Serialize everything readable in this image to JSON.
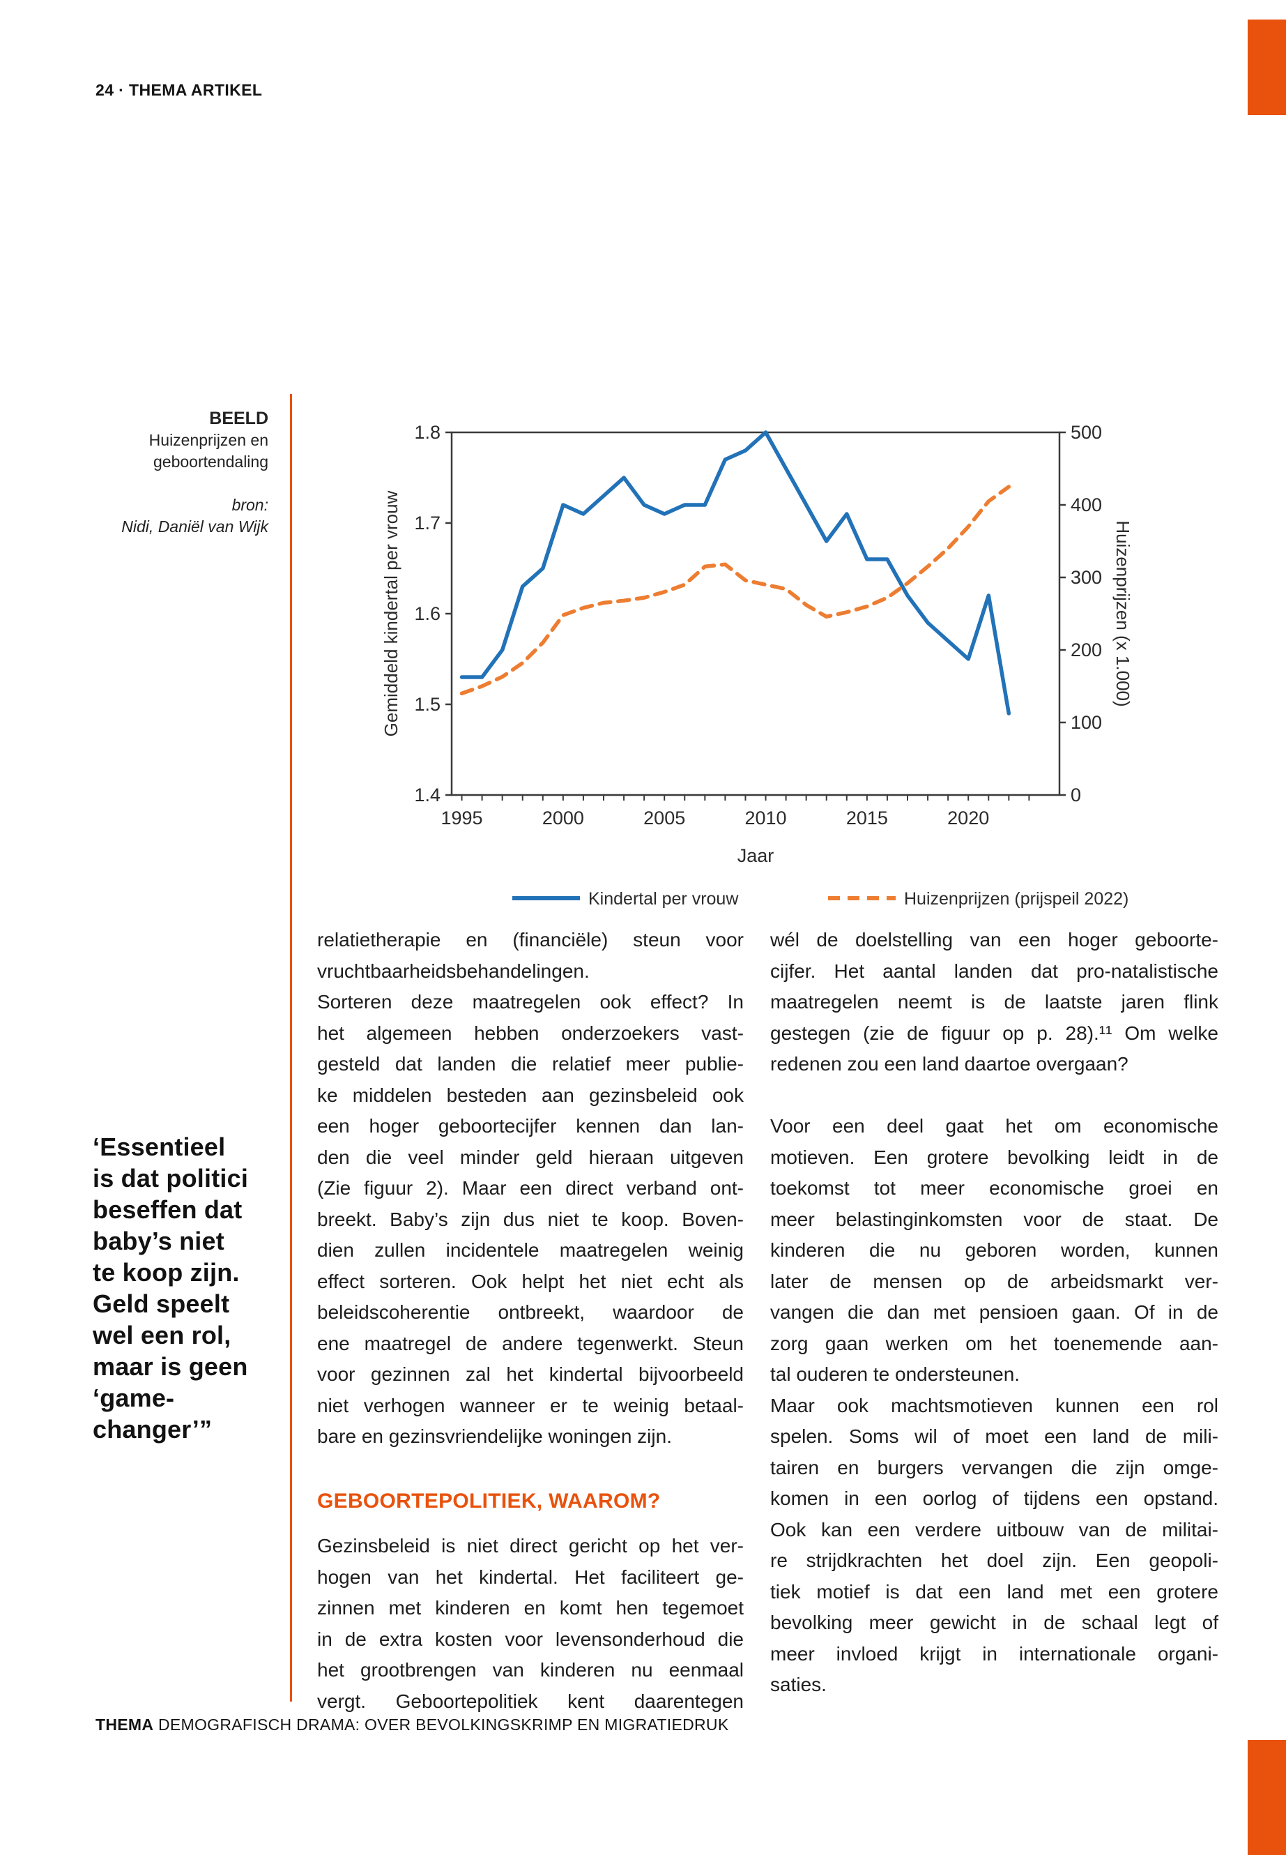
{
  "colors": {
    "accent_orange": "#e8520d",
    "chart_blue": "#2272b8",
    "chart_orange": "#ed7d31",
    "axis_dark": "#3a3a3a"
  },
  "header": {
    "kicker": "24 · THEMA ARTIKEL"
  },
  "footer": {
    "bold": "THEMA",
    "rest": " DEMOGRAFISCH DRAMA: OVER BEVOLKINGSKRIMP EN MIGRATIEDRUK"
  },
  "figure": {
    "label": "BEELD",
    "caption_lines": [
      "Huizenprijzen en",
      "geboortendaling"
    ],
    "source_label": "bron:",
    "source": "Nidi, Daniël van Wijk"
  },
  "pull_quote": {
    "lines": [
      "‘Essentieel",
      "is dat politici",
      "beseffen dat",
      "baby’s niet",
      "te koop zijn.",
      "Geld speelt",
      "wel een rol,",
      "maar is geen",
      "‘game-",
      "changer’”"
    ]
  },
  "chart_data": {
    "type": "line",
    "title": "",
    "xlabel": "Jaar",
    "ylabel_left": "Gemiddeld kindertal per vrouw",
    "ylabel_right": "Huizenprijzen (x 1.000)",
    "ylim_left": [
      1.4,
      1.8
    ],
    "ylim_right": [
      0,
      500
    ],
    "yticks_left": [
      "1.4",
      "1.5",
      "1.6",
      "1.7",
      "1.8"
    ],
    "yticks_right": [
      "0",
      "100",
      "200",
      "300",
      "400",
      "500"
    ],
    "xticks": [
      1995,
      2000,
      2005,
      2010,
      2015,
      2020
    ],
    "x": [
      1995,
      1996,
      1997,
      1998,
      1999,
      2000,
      2001,
      2002,
      2003,
      2004,
      2005,
      2006,
      2007,
      2008,
      2009,
      2010,
      2011,
      2012,
      2013,
      2014,
      2015,
      2016,
      2017,
      2018,
      2019,
      2020,
      2021,
      2022
    ],
    "grid": false,
    "legend_position": "bottom",
    "series": [
      {
        "name": "Kindertal per vrouw",
        "axis": "left",
        "style": "solid",
        "values": [
          1.53,
          1.53,
          1.56,
          1.63,
          1.65,
          1.72,
          1.71,
          1.73,
          1.75,
          1.72,
          1.71,
          1.72,
          1.72,
          1.77,
          1.78,
          1.8,
          1.76,
          1.72,
          1.68,
          1.71,
          1.66,
          1.66,
          1.62,
          1.59,
          1.57,
          1.55,
          1.62,
          1.49
        ]
      },
      {
        "name": "Huizenprijzen (prijspeil 2022)",
        "axis": "right",
        "style": "dashed",
        "values": [
          140,
          150,
          163,
          182,
          210,
          248,
          258,
          265,
          268,
          272,
          280,
          290,
          315,
          318,
          296,
          290,
          284,
          262,
          246,
          252,
          260,
          272,
          292,
          315,
          340,
          370,
          405,
          425
        ]
      }
    ]
  },
  "article": {
    "columns": [
      {
        "blocks": [
          {
            "type": "p",
            "cont": false,
            "gap": false,
            "lines": [
              "relatietherapie en (financiële) steun voor",
              "vruchtbaarheidsbehandelingen."
            ]
          },
          {
            "type": "p",
            "cont": false,
            "gap": false,
            "lines": [
              "Sorteren deze maatregelen ook effect? In",
              "het algemeen hebben onderzoekers vast-",
              "gesteld dat landen die relatief meer publie-",
              "ke middelen besteden aan gezinsbeleid ook",
              "een hoger geboortecijfer kennen dan lan-",
              "den die veel minder geld hieraan uitgeven",
              "(Zie figuur 2). Maar een direct verband ont-",
              "breekt. Baby’s zijn dus niet te koop. Boven-",
              "dien zullen incidentele maatregelen weinig",
              "effect sorteren. Ook helpt het niet echt als",
              "beleidscoherentie ontbreekt, waardoor de",
              "ene maatregel de andere tegenwerkt. Steun",
              "voor gezinnen zal het kindertal bijvoorbeeld",
              "niet verhogen wanneer er te weinig betaal-",
              "bare en gezinsvriendelijke woningen zijn."
            ]
          },
          {
            "type": "h",
            "text": "GEBOORTEPOLITIEK, WAAROM?"
          },
          {
            "type": "p",
            "cont": true,
            "gap": false,
            "lines": [
              "Gezinsbeleid is niet direct gericht op het ver-",
              "hogen van het kindertal. Het faciliteert ge-",
              "zinnen met kinderen en komt hen tegemoet",
              "in de extra kosten voor levensonderhoud die",
              "het grootbrengen van kinderen nu eenmaal",
              "vergt.  Geboortepolitiek  kent  daarentegen"
            ]
          }
        ]
      },
      {
        "blocks": [
          {
            "type": "p",
            "cont": false,
            "gap": false,
            "lines": [
              "wél de doelstelling van een hoger geboorte-",
              "cijfer. Het aantal landen dat pro-natalistische",
              "maatregelen neemt is de laatste jaren flink",
              "gestegen (zie de figuur op p. 28).¹¹ Om welke",
              "redenen zou een land daartoe overgaan?"
            ]
          },
          {
            "type": "p",
            "cont": false,
            "gap": true,
            "lines": [
              "Voor een deel gaat het om economische",
              "motieven. Een grotere bevolking leidt in de",
              "toekomst tot meer economische groei en",
              "meer belastinginkomsten voor de staat. De",
              "kinderen die nu geboren worden, kunnen",
              "later de mensen op de arbeidsmarkt ver-",
              "vangen die dan met pensioen gaan. Of in de",
              "zorg gaan werken om het toenemende aan-",
              "tal ouderen te ondersteunen."
            ]
          },
          {
            "type": "p",
            "cont": false,
            "gap": false,
            "lines": [
              "Maar ook machtsmotieven kunnen een rol",
              "spelen. Soms wil of moet een land de mili-",
              "tairen en burgers vervangen die zijn omge-",
              "komen in een oorlog of tijdens een opstand.",
              "Ook kan een verdere uitbouw van de militai-",
              "re strijdkrachten het doel zijn. Een geopoli-",
              "tiek motief is dat een land met een grotere",
              "bevolking meer gewicht in de schaal legt of",
              "meer invloed krijgt in internationale organi-",
              "saties."
            ]
          }
        ]
      }
    ]
  }
}
